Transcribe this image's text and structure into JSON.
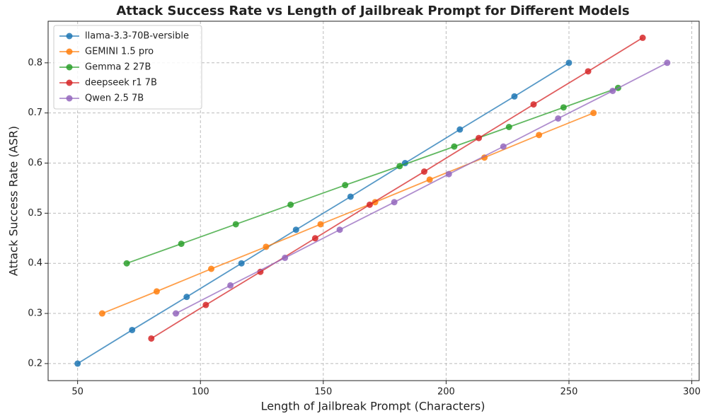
{
  "chart_data": {
    "type": "line",
    "title": "Attack Success Rate vs Length of Jailbreak Prompt for Different Models",
    "x_label": "Length of Jailbreak Prompt (Characters)",
    "y_label": "Attack Success Rate (ASR)",
    "xlim": [
      38,
      303
    ],
    "ylim": [
      0.166,
      0.883
    ],
    "xticks": [
      50,
      100,
      150,
      200,
      250,
      300
    ],
    "yticks": [
      0.2,
      0.3,
      0.4,
      0.5,
      0.6,
      0.7,
      0.8
    ],
    "grid": true,
    "legend": "upper left",
    "series": [
      {
        "name": "llama-3.3-70B-versible",
        "color": "#1f77b4",
        "x": [
          50,
          72.2,
          94.4,
          116.7,
          138.9,
          161.1,
          183.3,
          205.6,
          227.8,
          250
        ],
        "values": [
          0.2,
          0.267,
          0.333,
          0.4,
          0.467,
          0.533,
          0.6,
          0.667,
          0.733,
          0.8
        ]
      },
      {
        "name": "GEMINI 1.5 pro",
        "color": "#ff7f0e",
        "x": [
          60,
          82.2,
          104.4,
          126.7,
          148.9,
          171.1,
          193.3,
          215.6,
          237.8,
          260
        ],
        "values": [
          0.3,
          0.344,
          0.389,
          0.433,
          0.478,
          0.522,
          0.567,
          0.611,
          0.656,
          0.7
        ]
      },
      {
        "name": "Gemma 2 27B",
        "color": "#2ca02c",
        "x": [
          70,
          92.2,
          114.4,
          136.7,
          158.9,
          181.1,
          203.3,
          225.6,
          247.8,
          270
        ],
        "values": [
          0.4,
          0.439,
          0.478,
          0.517,
          0.556,
          0.594,
          0.633,
          0.672,
          0.711,
          0.75
        ]
      },
      {
        "name": "deepseek r1 7B",
        "color": "#d62728",
        "x": [
          80,
          102.2,
          124.4,
          146.7,
          168.9,
          191.1,
          213.3,
          235.6,
          257.8,
          280
        ],
        "values": [
          0.25,
          0.317,
          0.383,
          0.45,
          0.517,
          0.583,
          0.65,
          0.717,
          0.783,
          0.85
        ]
      },
      {
        "name": "Qwen 2.5 7B",
        "color": "#9467bd",
        "x": [
          90,
          112.2,
          134.4,
          156.7,
          178.9,
          201.1,
          223.3,
          245.6,
          267.8,
          290
        ],
        "values": [
          0.3,
          0.356,
          0.411,
          0.467,
          0.522,
          0.578,
          0.633,
          0.689,
          0.744,
          0.8
        ]
      }
    ]
  }
}
